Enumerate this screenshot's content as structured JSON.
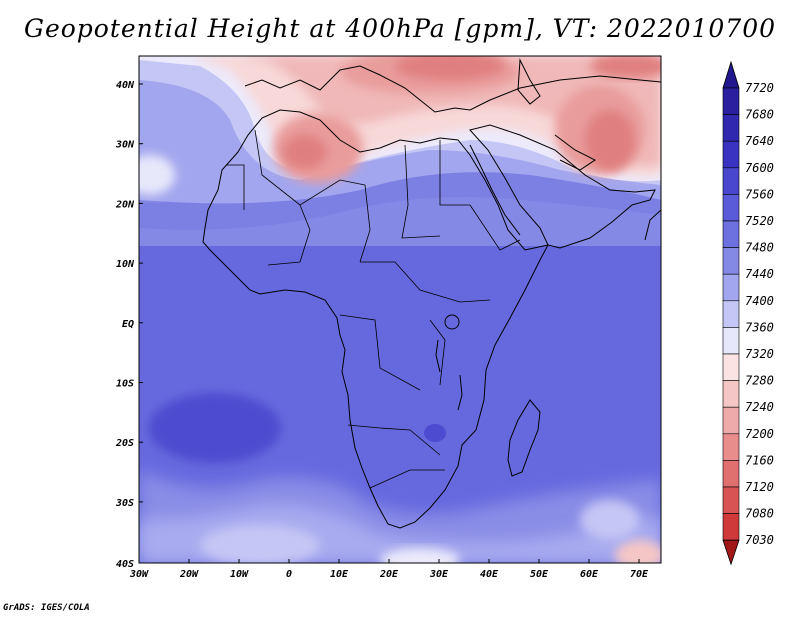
{
  "title": "Geopotential Height at 400hPa [gpm], VT: 2022010700",
  "credit": "GrADS: IGES/COLA",
  "map": {
    "lat_labels": [
      "40N",
      "30N",
      "20N",
      "10N",
      "EQ",
      "10S",
      "20S",
      "30S",
      "40S"
    ],
    "lon_labels": [
      "30W",
      "20W",
      "10W",
      "0",
      "10E",
      "20E",
      "30E",
      "40E",
      "50E",
      "60E",
      "70E"
    ]
  },
  "colorbar": {
    "levels": [
      "7720",
      "7680",
      "7640",
      "7600",
      "7560",
      "7520",
      "7480",
      "7440",
      "7400",
      "7360",
      "7320",
      "7280",
      "7240",
      "7200",
      "7160",
      "7120",
      "7080",
      "7030"
    ],
    "colors": [
      "#2a1f9e",
      "#3128b0",
      "#3a33c2",
      "#4a47cf",
      "#5a5bd8",
      "#6d70df",
      "#8589e6",
      "#a2a6ee",
      "#c4c6f5",
      "#e6e7fb",
      "#fbe3e3",
      "#f5c6c6",
      "#eeaaaa",
      "#e88c8c",
      "#e06f6f",
      "#d85353",
      "#cf3939",
      "#b52323"
    ],
    "top_arrow_color": "#20188c",
    "bottom_arrow_color": "#a01818"
  }
}
